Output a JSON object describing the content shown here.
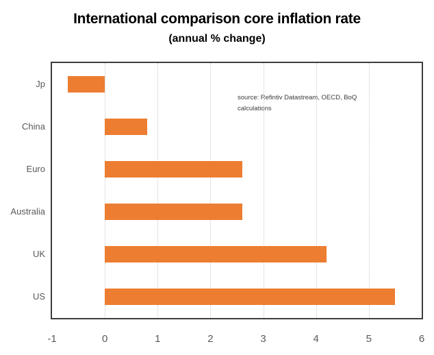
{
  "header": {
    "title": "International comparison core inflation rate",
    "subtitle": "(annual % change)"
  },
  "annotation": {
    "source_note": "source:  Refintiv Datastream, OECD, BoQ calculations"
  },
  "chart_data": {
    "type": "bar",
    "orientation": "horizontal",
    "title": "International comparison core inflation rate",
    "subtitle": "(annual % change)",
    "categories": [
      "Jp",
      "China",
      "Euro",
      "Australia",
      "UK",
      "US"
    ],
    "values": [
      -0.7,
      0.8,
      2.6,
      2.6,
      4.2,
      5.5
    ],
    "xlabel": "",
    "ylabel": "",
    "xlim": [
      -1,
      6
    ],
    "xticks": [
      -1,
      0,
      1,
      2,
      3,
      4,
      5,
      6
    ],
    "gridlines_at": [
      0,
      1,
      2,
      3,
      4,
      5
    ],
    "grid": true,
    "legend": false,
    "bar_color": "#ED7D31",
    "plot_border_color": "#3d3d3d",
    "gridline_color": "#c9c9c9",
    "axis_label_color": "#595959",
    "annotation_text": "source:  Refintiv Datastream, OECD, BoQ calculations"
  }
}
